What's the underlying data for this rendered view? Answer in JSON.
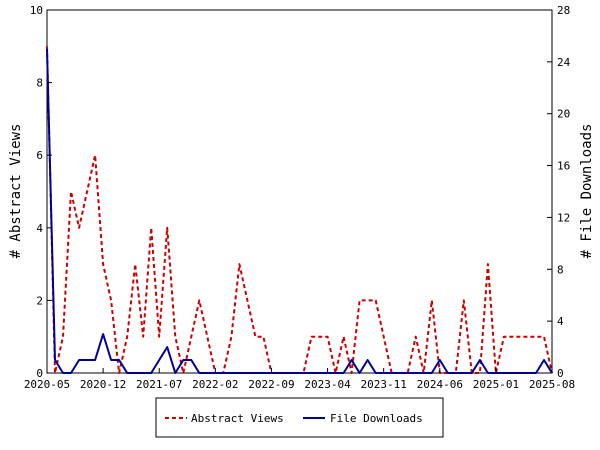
{
  "chart_data": {
    "type": "line",
    "title": "",
    "xlabel": "",
    "ylabel": "# Abstract Views",
    "y2label": "# File Downloads",
    "ylim": [
      0,
      10
    ],
    "y2lim": [
      0,
      28
    ],
    "yticks": [
      "0",
      "2",
      "4",
      "6",
      "8",
      "10"
    ],
    "y2ticks": [
      "0",
      "4",
      "8",
      "12",
      "16",
      "20",
      "24",
      "28"
    ],
    "x_tick_labels": [
      "2020-05",
      "2020-12",
      "2021-07",
      "2022-02",
      "2022-09",
      "2023-04",
      "2023-11",
      "2024-06",
      "2025-01",
      "2025-08"
    ],
    "grid": false,
    "legend_position": "bottom",
    "series": [
      {
        "name": "Abstract Views",
        "axis": "left",
        "color": "#cc0000",
        "style": "dashed",
        "x": [
          "2020-05",
          "2020-06",
          "2020-07",
          "2020-08",
          "2020-09",
          "2020-10",
          "2020-11",
          "2020-12",
          "2021-01",
          "2021-02",
          "2021-03",
          "2021-04",
          "2021-05",
          "2021-06",
          "2021-07",
          "2021-08",
          "2021-09",
          "2021-10",
          "2021-11",
          "2021-12",
          "2022-01",
          "2022-02",
          "2022-03",
          "2022-04",
          "2022-05",
          "2022-06",
          "2022-07",
          "2022-08",
          "2022-09",
          "2022-10",
          "2022-11",
          "2022-12",
          "2023-01",
          "2023-02",
          "2023-03",
          "2023-04",
          "2023-05",
          "2023-06",
          "2023-07",
          "2023-08",
          "2023-09",
          "2023-10",
          "2023-11",
          "2023-12",
          "2024-01",
          "2024-02",
          "2024-03",
          "2024-04",
          "2024-05",
          "2024-06",
          "2024-07",
          "2024-08",
          "2024-09",
          "2024-10",
          "2024-11",
          "2024-12",
          "2025-01",
          "2025-02",
          "2025-03",
          "2025-04",
          "2025-05",
          "2025-06",
          "2025-07",
          "2025-08"
        ],
        "values": [
          9,
          0,
          1,
          5,
          4,
          5,
          6,
          3,
          2,
          0,
          1,
          3,
          1,
          4,
          1,
          4,
          1,
          0,
          1,
          2,
          1,
          0,
          0,
          1,
          3,
          2,
          1,
          1,
          0,
          0,
          0,
          0,
          0,
          1,
          1,
          1,
          0,
          1,
          0,
          2,
          2,
          2,
          1,
          0,
          0,
          0,
          1,
          0,
          2,
          0,
          0,
          0,
          2,
          0,
          0,
          3,
          0,
          1,
          1,
          1,
          1,
          1,
          1,
          0
        ]
      },
      {
        "name": "File Downloads",
        "axis": "right",
        "color": "#000099",
        "style": "solid",
        "x": [
          "2020-05",
          "2020-06",
          "2020-07",
          "2020-08",
          "2020-09",
          "2020-10",
          "2020-11",
          "2020-12",
          "2021-01",
          "2021-02",
          "2021-03",
          "2021-04",
          "2021-05",
          "2021-06",
          "2021-07",
          "2021-08",
          "2021-09",
          "2021-10",
          "2021-11",
          "2021-12",
          "2022-01",
          "2022-02",
          "2022-03",
          "2022-04",
          "2022-05",
          "2022-06",
          "2022-07",
          "2022-08",
          "2022-09",
          "2022-10",
          "2022-11",
          "2022-12",
          "2023-01",
          "2023-02",
          "2023-03",
          "2023-04",
          "2023-05",
          "2023-06",
          "2023-07",
          "2023-08",
          "2023-09",
          "2023-10",
          "2023-11",
          "2023-12",
          "2024-01",
          "2024-02",
          "2024-03",
          "2024-04",
          "2024-05",
          "2024-06",
          "2024-07",
          "2024-08",
          "2024-09",
          "2024-10",
          "2024-11",
          "2024-12",
          "2025-01",
          "2025-02",
          "2025-03",
          "2025-04",
          "2025-05",
          "2025-06",
          "2025-07",
          "2025-08"
        ],
        "values": [
          25,
          1,
          0,
          0,
          1,
          1,
          1,
          3,
          1,
          1,
          0,
          0,
          0,
          0,
          1,
          2,
          0,
          1,
          1,
          0,
          0,
          0,
          0,
          0,
          0,
          0,
          0,
          0,
          0,
          0,
          0,
          0,
          0,
          0,
          0,
          0,
          0,
          0,
          1,
          0,
          1,
          0,
          0,
          0,
          0,
          0,
          0,
          0,
          0,
          1,
          0,
          0,
          0,
          0,
          1,
          0,
          0,
          0,
          0,
          0,
          0,
          0,
          1,
          0
        ]
      }
    ]
  }
}
